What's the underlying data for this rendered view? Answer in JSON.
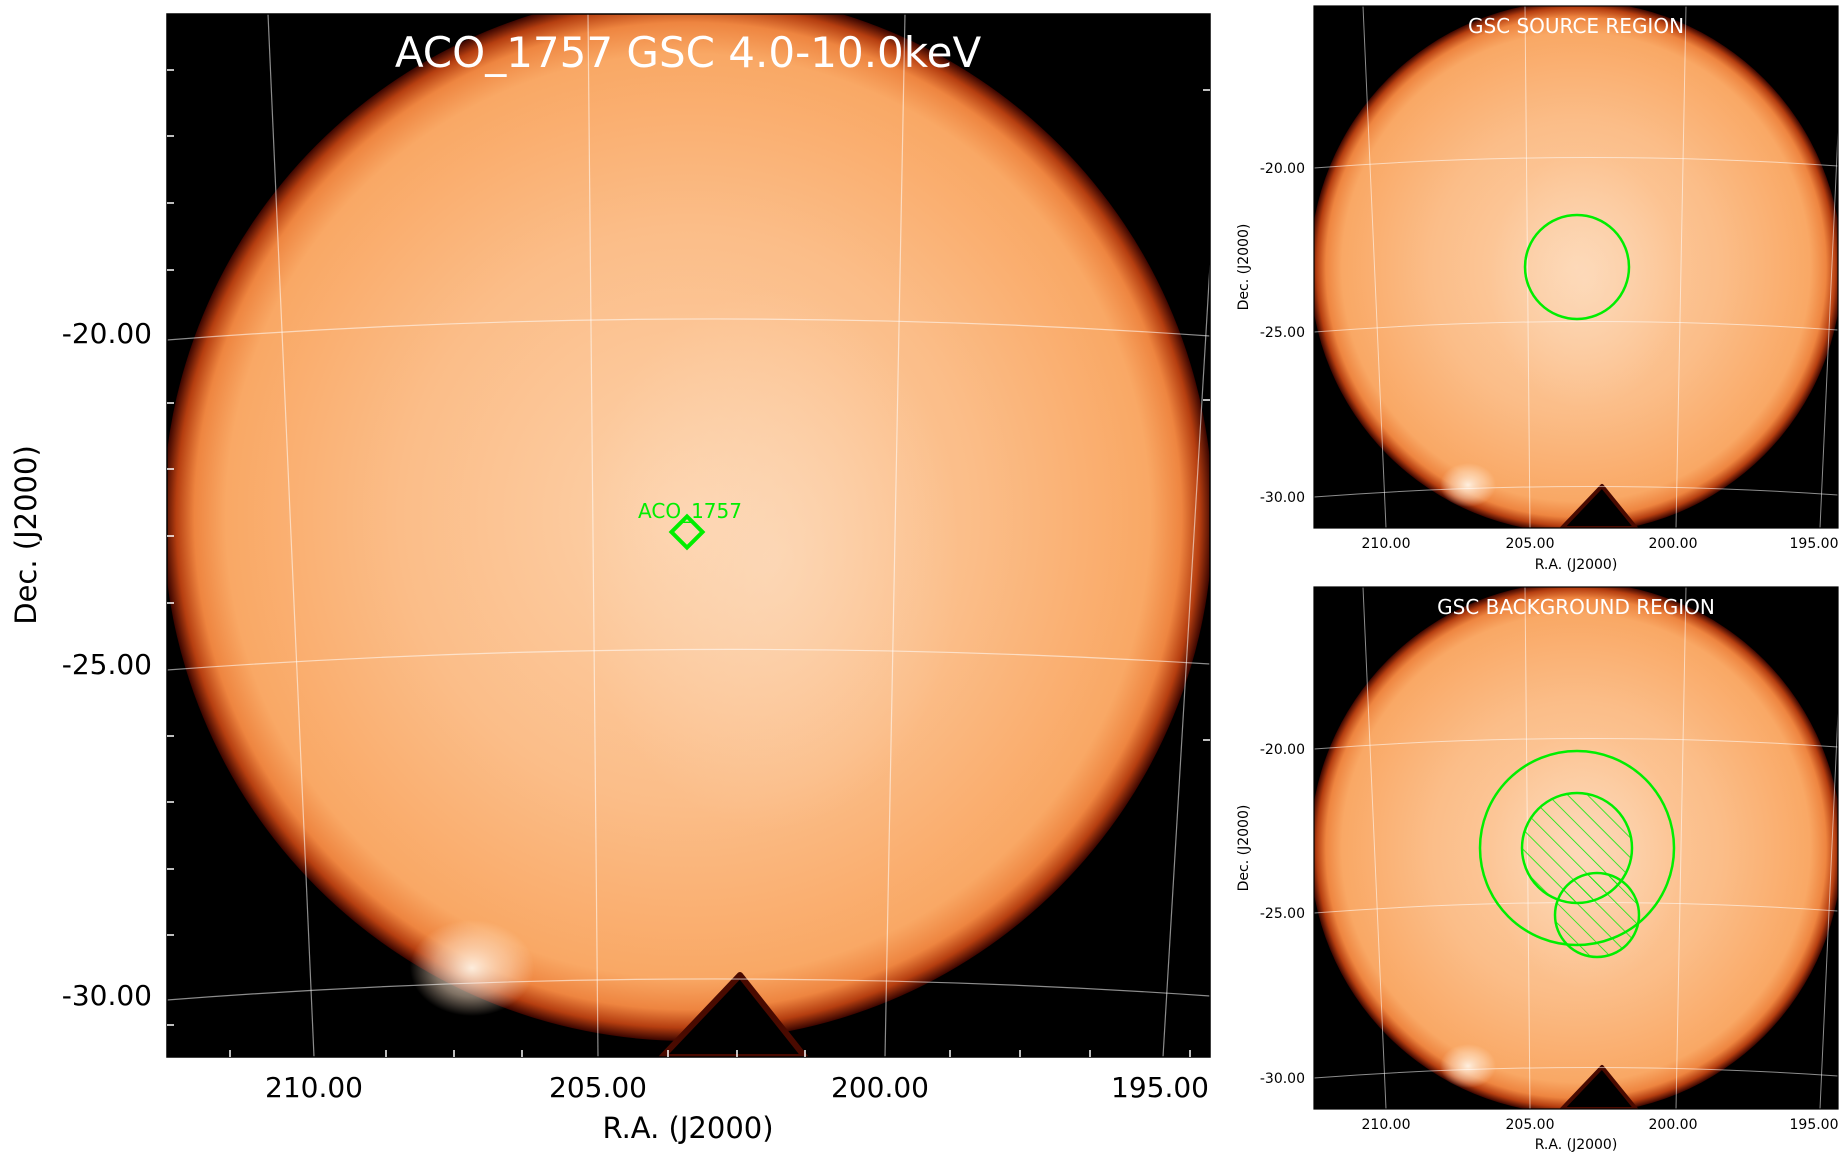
{
  "main_panel": {
    "title": "ACO_1757 GSC 4.0-10.0keV",
    "source_label": "ACO_1757",
    "x_ticks": [
      "210.00",
      "205.00",
      "200.00",
      "195.00"
    ],
    "y_ticks": [
      "-20.00",
      "-25.00",
      "-30.00"
    ],
    "xlabel": "R.A. (J2000)",
    "ylabel": "Dec. (J2000)"
  },
  "source_panel": {
    "title": "GSC SOURCE REGION",
    "x_ticks": [
      "210.00",
      "205.00",
      "200.00",
      "195.00"
    ],
    "y_ticks": [
      "-20.00",
      "-25.00",
      "-30.00"
    ],
    "xlabel": "R.A. (J2000)",
    "ylabel": "Dec. (J2000)"
  },
  "background_panel": {
    "title": "GSC BACKGROUND REGION",
    "x_ticks": [
      "210.00",
      "205.00",
      "200.00",
      "195.00"
    ],
    "y_ticks": [
      "-20.00",
      "-25.00",
      "-30.00"
    ],
    "xlabel": "R.A. (J2000)",
    "ylabel": "Dec. (J2000)"
  },
  "colors": {
    "image_core": "#fccaa0",
    "image_mid": "#f9ad70",
    "image_rim": "#6a1203",
    "sky_background": "#000000",
    "region": "#00ee00",
    "grid": "#ffffff"
  }
}
